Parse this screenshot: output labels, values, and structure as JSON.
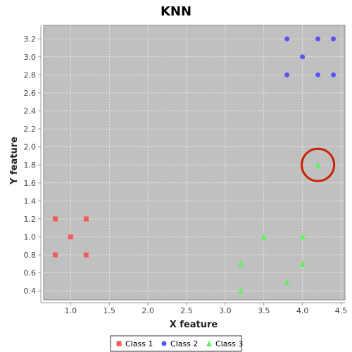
{
  "chart_data": {
    "type": "scatter",
    "title": "KNN",
    "xlabel": "X feature",
    "ylabel": "Y feature",
    "xlim": [
      0.65,
      4.55
    ],
    "ylim": [
      0.3,
      3.35
    ],
    "x_ticks": [
      1.0,
      1.5,
      2.0,
      2.5,
      3.0,
      3.5,
      4.0,
      4.5
    ],
    "y_ticks": [
      0.4,
      0.6,
      0.8,
      1.0,
      1.2,
      1.4,
      1.6,
      1.8,
      2.0,
      2.2,
      2.4,
      2.6,
      2.8,
      3.0,
      3.2
    ],
    "grid": true,
    "legend_position": "bottom",
    "plot_background": "#c0c0c0",
    "series": [
      {
        "name": "Class 1",
        "marker": "square",
        "color": "#f35b5b",
        "points": [
          [
            0.8,
            1.2
          ],
          [
            1.2,
            1.2
          ],
          [
            1.0,
            1.0
          ],
          [
            0.8,
            0.8
          ],
          [
            1.2,
            0.8
          ]
        ]
      },
      {
        "name": "Class 2",
        "marker": "circle",
        "color": "#5656f4",
        "points": [
          [
            3.8,
            3.2
          ],
          [
            4.2,
            3.2
          ],
          [
            4.4,
            3.2
          ],
          [
            4.0,
            3.0
          ],
          [
            3.8,
            2.8
          ],
          [
            4.2,
            2.8
          ],
          [
            4.4,
            2.8
          ]
        ]
      },
      {
        "name": "Class 3",
        "marker": "triangle",
        "color": "#5bf35b",
        "points": [
          [
            4.2,
            1.8
          ],
          [
            3.5,
            1.0
          ],
          [
            4.0,
            1.0
          ],
          [
            3.2,
            0.7
          ],
          [
            4.0,
            0.7
          ],
          [
            3.8,
            0.5
          ],
          [
            3.2,
            0.4
          ]
        ]
      }
    ],
    "annotations": [
      {
        "type": "circle",
        "x": 4.2,
        "y": 1.8,
        "color": "#cc2200"
      }
    ]
  }
}
